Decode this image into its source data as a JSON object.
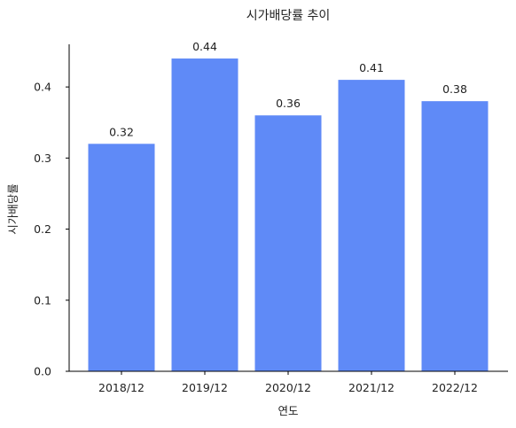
{
  "chart_data": {
    "type": "bar",
    "title": "시가배당률 추이",
    "xlabel": "연도",
    "ylabel": "시가배당률",
    "categories": [
      "2018/12",
      "2019/12",
      "2020/12",
      "2021/12",
      "2022/12"
    ],
    "values": [
      0.32,
      0.44,
      0.36,
      0.41,
      0.38
    ],
    "value_labels": [
      "0.32",
      "0.44",
      "0.36",
      "0.41",
      "0.38"
    ],
    "ylim": [
      0,
      0.46
    ],
    "yticks": [
      0.0,
      0.1,
      0.2,
      0.3,
      0.4
    ],
    "ytick_labels": [
      "0.0",
      "0.1",
      "0.2",
      "0.3",
      "0.4"
    ],
    "bar_color": "#5f8af7",
    "grid": false,
    "legend": "none"
  }
}
